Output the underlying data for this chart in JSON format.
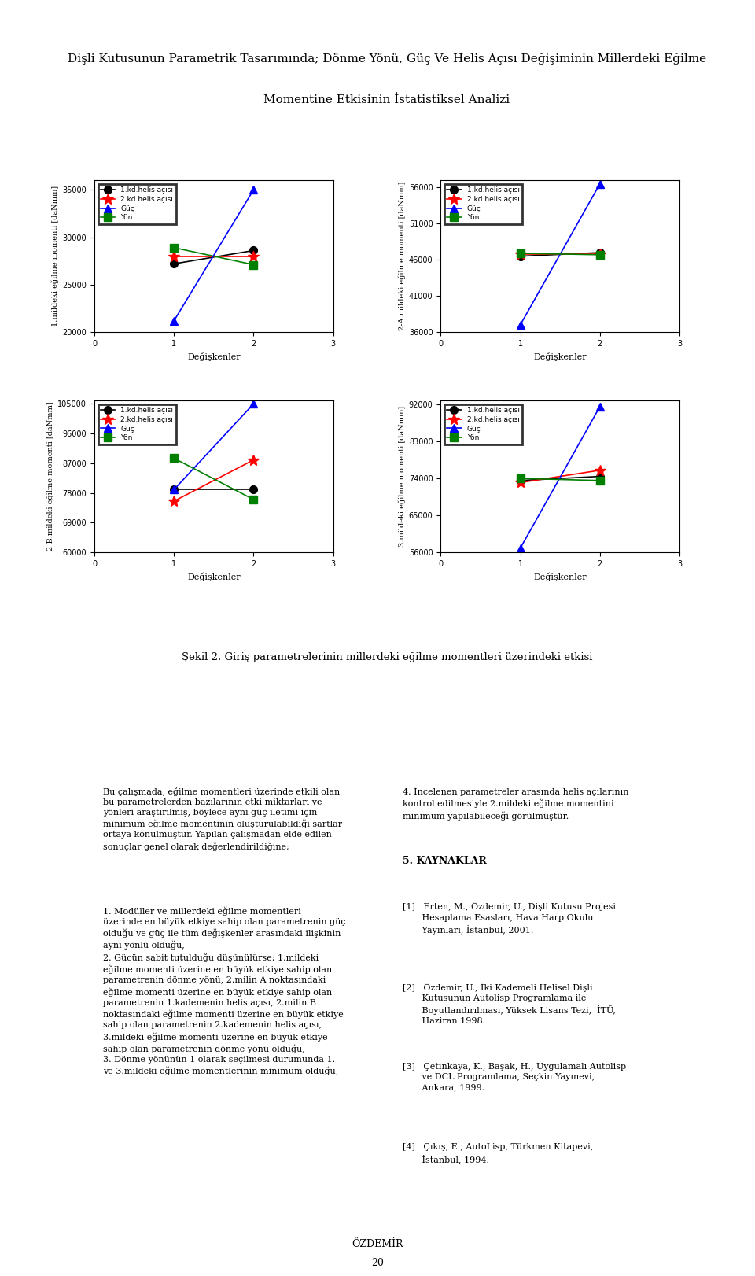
{
  "title_line1": "Dişli Kutusunun Parametrik Tasarımında; Dönme Yönü, Güç Ve Helis Açısı Değişiminin Millerdeki Eğilme",
  "title_line2": "Momentine Etkisinin İstatistiksel Analizi",
  "subtitle": "Şekil 2. Giriş parametrelerinin millerdeki eğilme momentleri üzerindeki etkisi",
  "legend_labels": [
    "1.kd.helis açısı",
    "2.kd.helis açısı",
    "Güç",
    "Yön"
  ],
  "legend_colors": [
    "black",
    "red",
    "blue",
    "green"
  ],
  "legend_markers": [
    "o",
    "*",
    "^",
    "s"
  ],
  "x_label": "Değişkenler",
  "plots": [
    {
      "ylabel": "1.mildeki eğilme momenti [daNmm]",
      "ylim": [
        20000,
        36000
      ],
      "yticks": [
        20000,
        25000,
        30000,
        35000
      ],
      "xlim": [
        0,
        3
      ],
      "xticks": [
        0,
        1,
        2,
        3
      ],
      "series": [
        {
          "x": [
            1,
            2
          ],
          "y": [
            27200,
            28600
          ],
          "color": "black",
          "marker": "o"
        },
        {
          "x": [
            1,
            2
          ],
          "y": [
            28000,
            28000
          ],
          "color": "red",
          "marker": "*"
        },
        {
          "x": [
            1,
            2
          ],
          "y": [
            21200,
            35000
          ],
          "color": "blue",
          "marker": "^"
        },
        {
          "x": [
            1,
            2
          ],
          "y": [
            28900,
            27100
          ],
          "color": "green",
          "marker": "s"
        }
      ]
    },
    {
      "ylabel": "2-A.mildeki eğilme momenti [daNmm]",
      "ylim": [
        36000,
        57000
      ],
      "yticks": [
        36000,
        41000,
        46000,
        51000,
        56000
      ],
      "xlim": [
        0,
        3
      ],
      "xticks": [
        0,
        1,
        2,
        3
      ],
      "series": [
        {
          "x": [
            1,
            2
          ],
          "y": [
            46500,
            47000
          ],
          "color": "black",
          "marker": "o"
        },
        {
          "x": [
            1,
            2
          ],
          "y": [
            46800,
            46800
          ],
          "color": "red",
          "marker": "*"
        },
        {
          "x": [
            1,
            2
          ],
          "y": [
            37000,
            56500
          ],
          "color": "blue",
          "marker": "^"
        },
        {
          "x": [
            1,
            2
          ],
          "y": [
            46900,
            46700
          ],
          "color": "green",
          "marker": "s"
        }
      ]
    },
    {
      "ylabel": "2-B.mildeki eğilme momenti [daNmm]",
      "ylim": [
        60000,
        106000
      ],
      "yticks": [
        60000,
        69000,
        78000,
        87000,
        96000,
        105000
      ],
      "xlim": [
        0,
        3
      ],
      "xticks": [
        0,
        1,
        2,
        3
      ],
      "series": [
        {
          "x": [
            1,
            2
          ],
          "y": [
            79000,
            79000
          ],
          "color": "black",
          "marker": "o"
        },
        {
          "x": [
            1,
            2
          ],
          "y": [
            75500,
            88000
          ],
          "color": "red",
          "marker": "*"
        },
        {
          "x": [
            1,
            2
          ],
          "y": [
            79000,
            105000
          ],
          "color": "blue",
          "marker": "^"
        },
        {
          "x": [
            1,
            2
          ],
          "y": [
            88500,
            76000
          ],
          "color": "green",
          "marker": "s"
        }
      ]
    },
    {
      "ylabel": "3.mildeki eğilme momenti [daNmm]",
      "ylim": [
        56000,
        93000
      ],
      "yticks": [
        56000,
        65000,
        74000,
        83000,
        92000
      ],
      "xlim": [
        0,
        3
      ],
      "xticks": [
        0,
        1,
        2,
        3
      ],
      "series": [
        {
          "x": [
            1,
            2
          ],
          "y": [
            73500,
            74500
          ],
          "color": "black",
          "marker": "o"
        },
        {
          "x": [
            1,
            2
          ],
          "y": [
            73000,
            76000
          ],
          "color": "red",
          "marker": "*"
        },
        {
          "x": [
            1,
            2
          ],
          "y": [
            57000,
            91500
          ],
          "color": "blue",
          "marker": "^"
        },
        {
          "x": [
            1,
            2
          ],
          "y": [
            74000,
            73500
          ],
          "color": "green",
          "marker": "s"
        }
      ]
    }
  ],
  "body_text_left": "Bu çalışmada, eğilme momentleri üzerinde etkili olan\nbu parametrelerden bazılarının etki miktarları ve\nyönleri araştırılmış, böylece aynı güç iletimi için\nminimum eğilme momentinin oluşturulabildiği şartlar\nortaya konulmuştur. Yapılan çalışmadan elde edilen\nsonuçlar genel olarak değerlendirildiğine;",
  "body_text_left2": "1. Modüller ve millerdeki eğilme momentleri\nüzerinde en büyük etkiye sahip olan parametrenin güç\nolduğu ve güç ile tüm değişkenler arasındaki ilişkinin\naynı yönlü olduğu,\n2. Gücün sabit tutulduğu düşünülürse; 1.mildeki\neğilme momenti üzerine en büyük etkiye sahip olan\nparametrenin dönme yönü, 2.milin A noktasındaki\neğilme momenti üzerine en büyük etkiye sahip olan\nparametrenin 1.kademenin helis açısı, 2.milin B\nnoktasındaki eğilme momenti üzerine en büyük etkiye\nsahip olan parametrenin 2.kademenin helis açısı,\n3.mildeki eğilme momenti üzerine en büyük etkiye\nsahip olan parametrenin dönme yönü olduğu,\n3. Dönme yönünün 1 olarak seçilmesi durumunda 1.\nve 3.mildeki eğilme momentlerinin minimum olduğu,",
  "body_text_right": "4. İncelenen parametreler arasında helis açılarının\nkontrol edilmesiyle 2.mildeki eğilme momentini\nminimum yapılabileceği görülmüştür.",
  "section5_title": "5. KAYNAKLAR",
  "references": [
    "[1]   Erten, M., Özdemir, U., Dişli Kutusu Projesi\n       Hesaplama Esasları, Hava Harp Okulu\n       Yayınları, İstanbul, 2001.",
    "[2]   Özdemir, U., İki Kademeli Helisel Dişli\n       Kutusunun Autolisp Programlama ile\n       Boyutlandırılması, Yüksek Lisans Tezi,  İTÜ,\n       Haziran 1998.",
    "[3]   Çetinkaya, K., Başak, H., Uygulamalı Autolisp\n       ve DCL Programlama, Seçkin Yayınevi,\n       Ankara, 1999.",
    "[4]   Çıkış, E., AutoLisp, Türkmen Kitapevi,\n       İstanbul, 1994."
  ],
  "footer": "ÖZDEMİR",
  "page_number": "20"
}
